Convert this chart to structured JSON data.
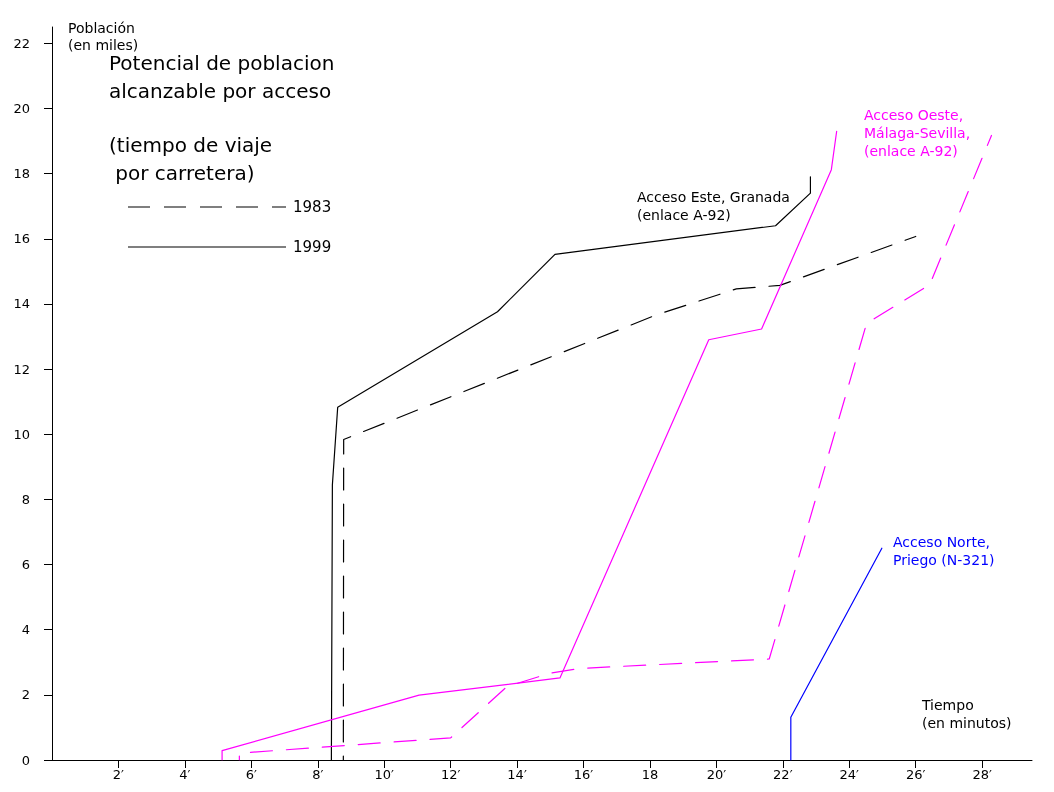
{
  "chart_data": {
    "type": "line",
    "title": "Potencial de poblacion\nalcanzable por acceso",
    "subtitle": "(tiempo de viaje\n por carretera)",
    "xlabel": "Tiempo\n(en minutos)",
    "ylabel": "Población\n(en miles)",
    "xlim": [
      0,
      29.5
    ],
    "ylim": [
      0,
      22.5
    ],
    "xticks": [
      {
        "value": 2,
        "label": "2′"
      },
      {
        "value": 4,
        "label": "4′"
      },
      {
        "value": 6,
        "label": "6′"
      },
      {
        "value": 8,
        "label": "8′"
      },
      {
        "value": 10,
        "label": "10′"
      },
      {
        "value": 12,
        "label": "12′"
      },
      {
        "value": 14,
        "label": "14′"
      },
      {
        "value": 16,
        "label": "16′"
      },
      18,
      {
        "value": 20,
        "label": "20′"
      },
      {
        "value": 22,
        "label": "22′"
      },
      {
        "value": 24,
        "label": "24′"
      },
      {
        "value": 26,
        "label": "26′"
      },
      {
        "value": 28,
        "label": "28′"
      }
    ],
    "yticks": [
      0,
      2,
      4,
      6,
      8,
      10,
      12,
      14,
      16,
      18,
      20,
      22
    ],
    "grid": false,
    "marker": "none",
    "series": [
      {
        "color": "#000000",
        "line_style": "dashed",
        "x": [
          8.77,
          8.78,
          18.21,
          20.6,
          21.91,
          26.0
        ],
        "values": [
          0,
          9.84,
          13.67,
          14.46,
          14.57,
          16.07
        ]
      },
      {
        "name": "Acceso Este, Granada\n(enlace A-92)",
        "color": "#000000",
        "line_style": "solid",
        "x": [
          8.41,
          8.44,
          8.6,
          13.41,
          15.14,
          21.78,
          22.83,
          22.83
        ],
        "values": [
          0,
          8.44,
          10.83,
          13.76,
          15.52,
          16.4,
          17.4,
          17.9
        ]
      },
      {
        "color": "#ff00ff",
        "line_style": "dashed",
        "x": [
          5.64,
          5.64,
          12.0,
          13.69,
          14.97,
          15.89,
          21.59,
          24.52,
          26.42,
          28.28
        ],
        "values": [
          0,
          0.21,
          0.68,
          2.25,
          2.66,
          2.81,
          3.1,
          13.4,
          14.59,
          19.17
        ]
      },
      {
        "name": "Acceso Oeste,\nMálaga-Sevilla,\n(enlace A-92)",
        "color": "#ff00ff",
        "line_style": "solid",
        "x": [
          5.12,
          5.12,
          11.05,
          15.29,
          19.77,
          21.36,
          23.46,
          23.62
        ],
        "values": [
          0,
          0.29,
          1.99,
          2.52,
          12.9,
          13.23,
          18.12,
          19.3
        ]
      },
      {
        "name": "Acceso Norte,\nPriego (N-321)",
        "color": "#0000ff",
        "line_style": "solid",
        "x": [
          22.24,
          22.24,
          24.98
        ],
        "values": [
          0,
          1.31,
          6.5
        ]
      }
    ],
    "annotations": [
      "1983",
      "1999"
    ]
  }
}
